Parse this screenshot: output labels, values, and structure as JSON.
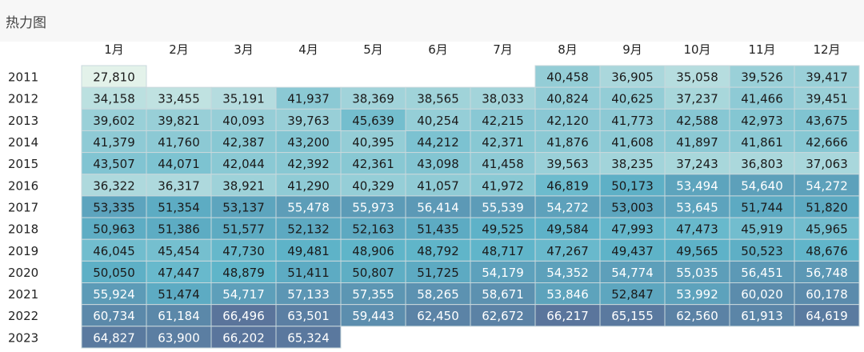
{
  "chart_data": {
    "type": "heatmap",
    "title": "热力图",
    "columns": [
      "1月",
      "2月",
      "3月",
      "4月",
      "5月",
      "6月",
      "7月",
      "8月",
      "9月",
      "10月",
      "11月",
      "12月"
    ],
    "rows": [
      "2011",
      "2012",
      "2013",
      "2014",
      "2015",
      "2016",
      "2017",
      "2018",
      "2019",
      "2020",
      "2021",
      "2022",
      "2023"
    ],
    "values": [
      [
        27810,
        null,
        null,
        null,
        null,
        null,
        null,
        40458,
        36905,
        35058,
        39526,
        39417
      ],
      [
        34158,
        33455,
        35191,
        41937,
        38369,
        38565,
        38033,
        40824,
        40625,
        37237,
        41466,
        39451
      ],
      [
        39602,
        39821,
        40093,
        39763,
        45639,
        40254,
        42215,
        42120,
        41773,
        42588,
        42973,
        43675
      ],
      [
        41379,
        41760,
        42387,
        43200,
        40395,
        44212,
        42371,
        41876,
        41608,
        41897,
        41861,
        42666
      ],
      [
        43507,
        44071,
        42044,
        42392,
        42361,
        43098,
        41458,
        39563,
        38235,
        37243,
        36803,
        37063
      ],
      [
        36322,
        36317,
        38921,
        41290,
        40329,
        41057,
        41972,
        46819,
        50173,
        53494,
        54640,
        54272
      ],
      [
        53335,
        51354,
        53137,
        55478,
        55973,
        56414,
        55539,
        54272,
        53003,
        53645,
        51744,
        51820
      ],
      [
        50963,
        51386,
        51577,
        52132,
        52163,
        51435,
        49525,
        49584,
        47993,
        47473,
        45919,
        45965
      ],
      [
        46045,
        45454,
        47730,
        49481,
        48906,
        48792,
        48717,
        47267,
        49437,
        49565,
        50523,
        48676
      ],
      [
        50050,
        47447,
        48879,
        51411,
        50807,
        51725,
        54179,
        54352,
        54774,
        55035,
        56451,
        56748
      ],
      [
        55924,
        51474,
        54717,
        57133,
        57355,
        58265,
        58671,
        53846,
        52847,
        53992,
        60020,
        60178
      ],
      [
        60734,
        61184,
        66496,
        63501,
        59443,
        62450,
        62672,
        66217,
        65155,
        62560,
        61913,
        64619
      ],
      [
        64827,
        63900,
        66202,
        65324,
        null,
        null,
        null,
        null,
        null,
        null,
        null,
        null
      ]
    ],
    "color_scale": {
      "low": "#e3f2ea",
      "mid": "#5eb4c9",
      "high": "#5a749b",
      "light_text": "#ffffff",
      "dark_text": "#1a1a1a"
    },
    "empty_cell_color": "#ffffff",
    "grid_color": "#c8d8dc"
  }
}
